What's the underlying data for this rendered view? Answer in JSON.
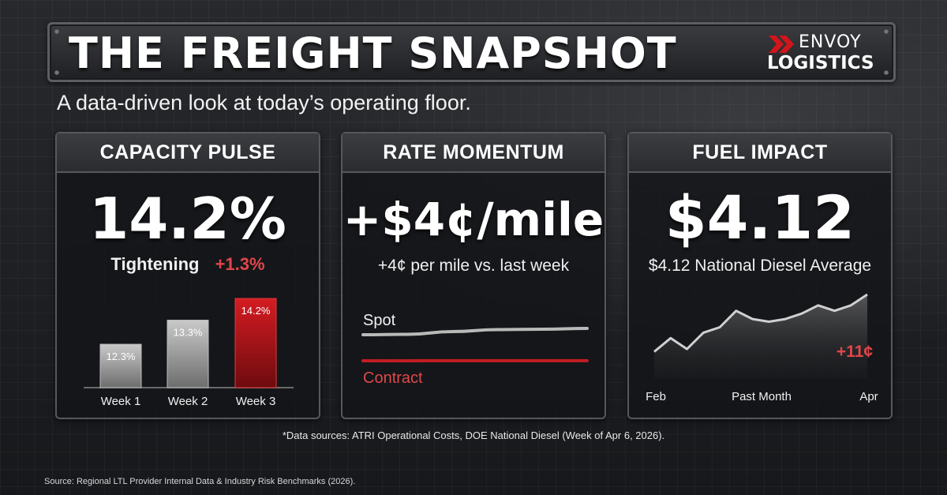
{
  "title": "THE FREIGHT SNAPSHOT",
  "subtitle": "A data-driven look at today’s operating floor.",
  "brand": {
    "line1": "ENVOY",
    "line2": "LOGISTICS",
    "icon": "double-chevron-right-icon",
    "accent_color": "#d0161b"
  },
  "cards": [
    {
      "heading": "CAPACITY PULSE",
      "value": "14.2%",
      "status": "Tightening",
      "change": "+1.3%"
    },
    {
      "heading": "RATE MOMENTUM",
      "value": "+$4¢/mile",
      "note": "+4¢ per mile vs. last week"
    },
    {
      "heading": "FUEL IMPACT",
      "value": "$4.12",
      "note": "$4.12 National Diesel Average"
    }
  ],
  "colors": {
    "accent_red": "#e0474a",
    "bar_gray": "#a8a8a8",
    "bar_red": "#b3141a",
    "spot_line": "#b9b9b9",
    "contract_line": "#c21d22"
  },
  "chart_data": [
    {
      "type": "bar",
      "categories": [
        "Week 1",
        "Week 2",
        "Week 3"
      ],
      "values": [
        12.3,
        13.3,
        14.2
      ],
      "labels": [
        "12.3%",
        "13.3%",
        "14.2%"
      ],
      "title": "",
      "xlabel": "",
      "ylabel": "",
      "grid": false
    },
    {
      "type": "line",
      "series": [
        {
          "name": "Spot",
          "values": [
            0.2,
            0.25,
            0.6,
            0.85,
            0.9,
            1.0
          ]
        },
        {
          "name": "Contract",
          "values": [
            0.0,
            0.02,
            0.04,
            0.05,
            0.06,
            0.06
          ]
        }
      ],
      "title": "",
      "xlabel": "",
      "ylabel": "",
      "grid": false
    },
    {
      "type": "area",
      "x_labels": [
        "Feb",
        "Past Month",
        "Apr"
      ],
      "series": [
        {
          "name": "",
          "values": [
            3.93,
            3.98,
            3.94,
            4.0,
            4.02,
            4.08,
            4.05,
            4.04,
            4.05,
            4.07,
            4.1,
            4.08,
            4.1,
            4.14
          ]
        }
      ],
      "annotation": "+11¢",
      "title": "",
      "xlabel": "",
      "ylabel": "",
      "grid": false
    }
  ],
  "footnote": "*Data sources: ATRI Operational Costs, DOE National Diesel (Week of Apr 6, 2026).",
  "source": "Source: Regional LTL Provider Internal Data & Industry Risk Benchmarks (2026)."
}
